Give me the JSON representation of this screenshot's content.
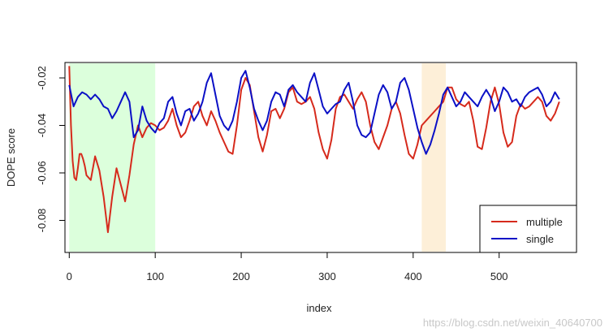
{
  "chart_data": {
    "type": "line",
    "title": "",
    "xlabel": "index",
    "ylabel": "DOPE score",
    "xlim": [
      -5,
      590
    ],
    "ylim": [
      -0.0935,
      -0.0135
    ],
    "xticks": [
      0,
      100,
      200,
      300,
      400,
      500
    ],
    "yticks": [
      -0.08,
      -0.06,
      -0.04,
      -0.02
    ],
    "grid": false,
    "legend_position": "bottom-right",
    "highlight_regions": [
      {
        "from": 0,
        "to": 100,
        "color": "#dcffdc"
      },
      {
        "from": 410,
        "to": 438,
        "color": "#fdefd8"
      }
    ],
    "series": [
      {
        "name": "multiple",
        "color": "#d62a1c",
        "x": [
          0,
          2,
          4,
          6,
          8,
          10,
          12,
          14,
          16,
          18,
          20,
          25,
          30,
          35,
          40,
          45,
          50,
          55,
          60,
          65,
          70,
          75,
          80,
          85,
          90,
          95,
          100,
          105,
          110,
          115,
          120,
          125,
          130,
          135,
          140,
          145,
          150,
          155,
          160,
          165,
          170,
          175,
          180,
          185,
          190,
          195,
          200,
          205,
          210,
          215,
          220,
          225,
          230,
          235,
          240,
          245,
          250,
          255,
          260,
          265,
          270,
          275,
          280,
          285,
          290,
          295,
          300,
          305,
          310,
          315,
          320,
          325,
          330,
          335,
          340,
          345,
          350,
          355,
          360,
          365,
          370,
          375,
          380,
          385,
          390,
          395,
          400,
          405,
          410,
          415,
          420,
          425,
          430,
          435,
          440,
          445,
          450,
          455,
          460,
          465,
          470,
          475,
          480,
          485,
          490,
          495,
          500,
          505,
          510,
          515,
          520,
          525,
          530,
          535,
          540,
          545,
          550,
          555,
          560,
          565,
          570
        ],
        "values": [
          -0.015,
          -0.04,
          -0.055,
          -0.062,
          -0.063,
          -0.058,
          -0.052,
          -0.052,
          -0.054,
          -0.057,
          -0.061,
          -0.063,
          -0.053,
          -0.059,
          -0.07,
          -0.085,
          -0.07,
          -0.058,
          -0.065,
          -0.072,
          -0.061,
          -0.048,
          -0.04,
          -0.045,
          -0.041,
          -0.039,
          -0.04,
          -0.042,
          -0.041,
          -0.038,
          -0.033,
          -0.04,
          -0.045,
          -0.043,
          -0.038,
          -0.032,
          -0.03,
          -0.036,
          -0.04,
          -0.034,
          -0.038,
          -0.043,
          -0.047,
          -0.051,
          -0.052,
          -0.04,
          -0.025,
          -0.02,
          -0.023,
          -0.034,
          -0.045,
          -0.051,
          -0.044,
          -0.034,
          -0.033,
          -0.037,
          -0.033,
          -0.026,
          -0.024,
          -0.03,
          -0.031,
          -0.03,
          -0.028,
          -0.033,
          -0.043,
          -0.05,
          -0.054,
          -0.046,
          -0.033,
          -0.028,
          -0.027,
          -0.03,
          -0.033,
          -0.029,
          -0.026,
          -0.03,
          -0.04,
          -0.047,
          -0.05,
          -0.045,
          -0.04,
          -0.033,
          -0.03,
          -0.035,
          -0.044,
          -0.052,
          -0.054,
          -0.048,
          -0.04,
          -0.038,
          -0.036,
          -0.034,
          -0.032,
          -0.03,
          -0.024,
          -0.024,
          -0.029,
          -0.031,
          -0.032,
          -0.03,
          -0.038,
          -0.049,
          -0.05,
          -0.041,
          -0.03,
          -0.024,
          -0.031,
          -0.043,
          -0.049,
          -0.047,
          -0.036,
          -0.031,
          -0.033,
          -0.032,
          -0.03,
          -0.028,
          -0.03,
          -0.036,
          -0.038,
          -0.035,
          -0.03
        ]
      },
      {
        "name": "single",
        "color": "#0b10c6",
        "x": [
          0,
          5,
          10,
          15,
          20,
          25,
          30,
          35,
          40,
          45,
          50,
          55,
          60,
          65,
          70,
          75,
          80,
          85,
          90,
          95,
          100,
          105,
          110,
          115,
          120,
          125,
          130,
          135,
          140,
          145,
          150,
          155,
          160,
          165,
          170,
          175,
          180,
          185,
          190,
          195,
          200,
          205,
          210,
          215,
          220,
          225,
          230,
          235,
          240,
          245,
          250,
          255,
          260,
          265,
          270,
          275,
          280,
          285,
          290,
          295,
          300,
          305,
          310,
          315,
          320,
          325,
          330,
          335,
          340,
          345,
          350,
          355,
          360,
          365,
          370,
          375,
          380,
          385,
          390,
          395,
          400,
          405,
          410,
          415,
          420,
          425,
          430,
          435,
          440,
          445,
          450,
          455,
          460,
          465,
          470,
          475,
          480,
          485,
          490,
          495,
          500,
          505,
          510,
          515,
          520,
          525,
          530,
          535,
          540,
          545,
          550,
          555,
          560,
          565,
          570
        ],
        "values": [
          -0.023,
          -0.032,
          -0.028,
          -0.026,
          -0.027,
          -0.029,
          -0.027,
          -0.029,
          -0.032,
          -0.033,
          -0.037,
          -0.034,
          -0.03,
          -0.026,
          -0.03,
          -0.045,
          -0.042,
          -0.032,
          -0.038,
          -0.041,
          -0.043,
          -0.039,
          -0.037,
          -0.03,
          -0.028,
          -0.035,
          -0.04,
          -0.034,
          -0.033,
          -0.038,
          -0.035,
          -0.03,
          -0.022,
          -0.018,
          -0.027,
          -0.036,
          -0.04,
          -0.042,
          -0.038,
          -0.03,
          -0.02,
          -0.017,
          -0.024,
          -0.033,
          -0.038,
          -0.042,
          -0.038,
          -0.03,
          -0.026,
          -0.027,
          -0.032,
          -0.025,
          -0.023,
          -0.026,
          -0.028,
          -0.03,
          -0.022,
          -0.018,
          -0.025,
          -0.032,
          -0.035,
          -0.033,
          -0.031,
          -0.03,
          -0.025,
          -0.022,
          -0.03,
          -0.04,
          -0.044,
          -0.045,
          -0.043,
          -0.035,
          -0.027,
          -0.023,
          -0.026,
          -0.033,
          -0.03,
          -0.022,
          -0.02,
          -0.025,
          -0.033,
          -0.041,
          -0.047,
          -0.052,
          -0.048,
          -0.042,
          -0.035,
          -0.027,
          -0.024,
          -0.028,
          -0.032,
          -0.03,
          -0.026,
          -0.028,
          -0.03,
          -0.032,
          -0.028,
          -0.025,
          -0.028,
          -0.034,
          -0.03,
          -0.024,
          -0.026,
          -0.03,
          -0.029,
          -0.032,
          -0.028,
          -0.026,
          -0.025,
          -0.024,
          -0.027,
          -0.032,
          -0.03,
          -0.026,
          -0.029
        ]
      }
    ]
  },
  "watermark": "https://blog.csdn.net/weixin_40640700"
}
